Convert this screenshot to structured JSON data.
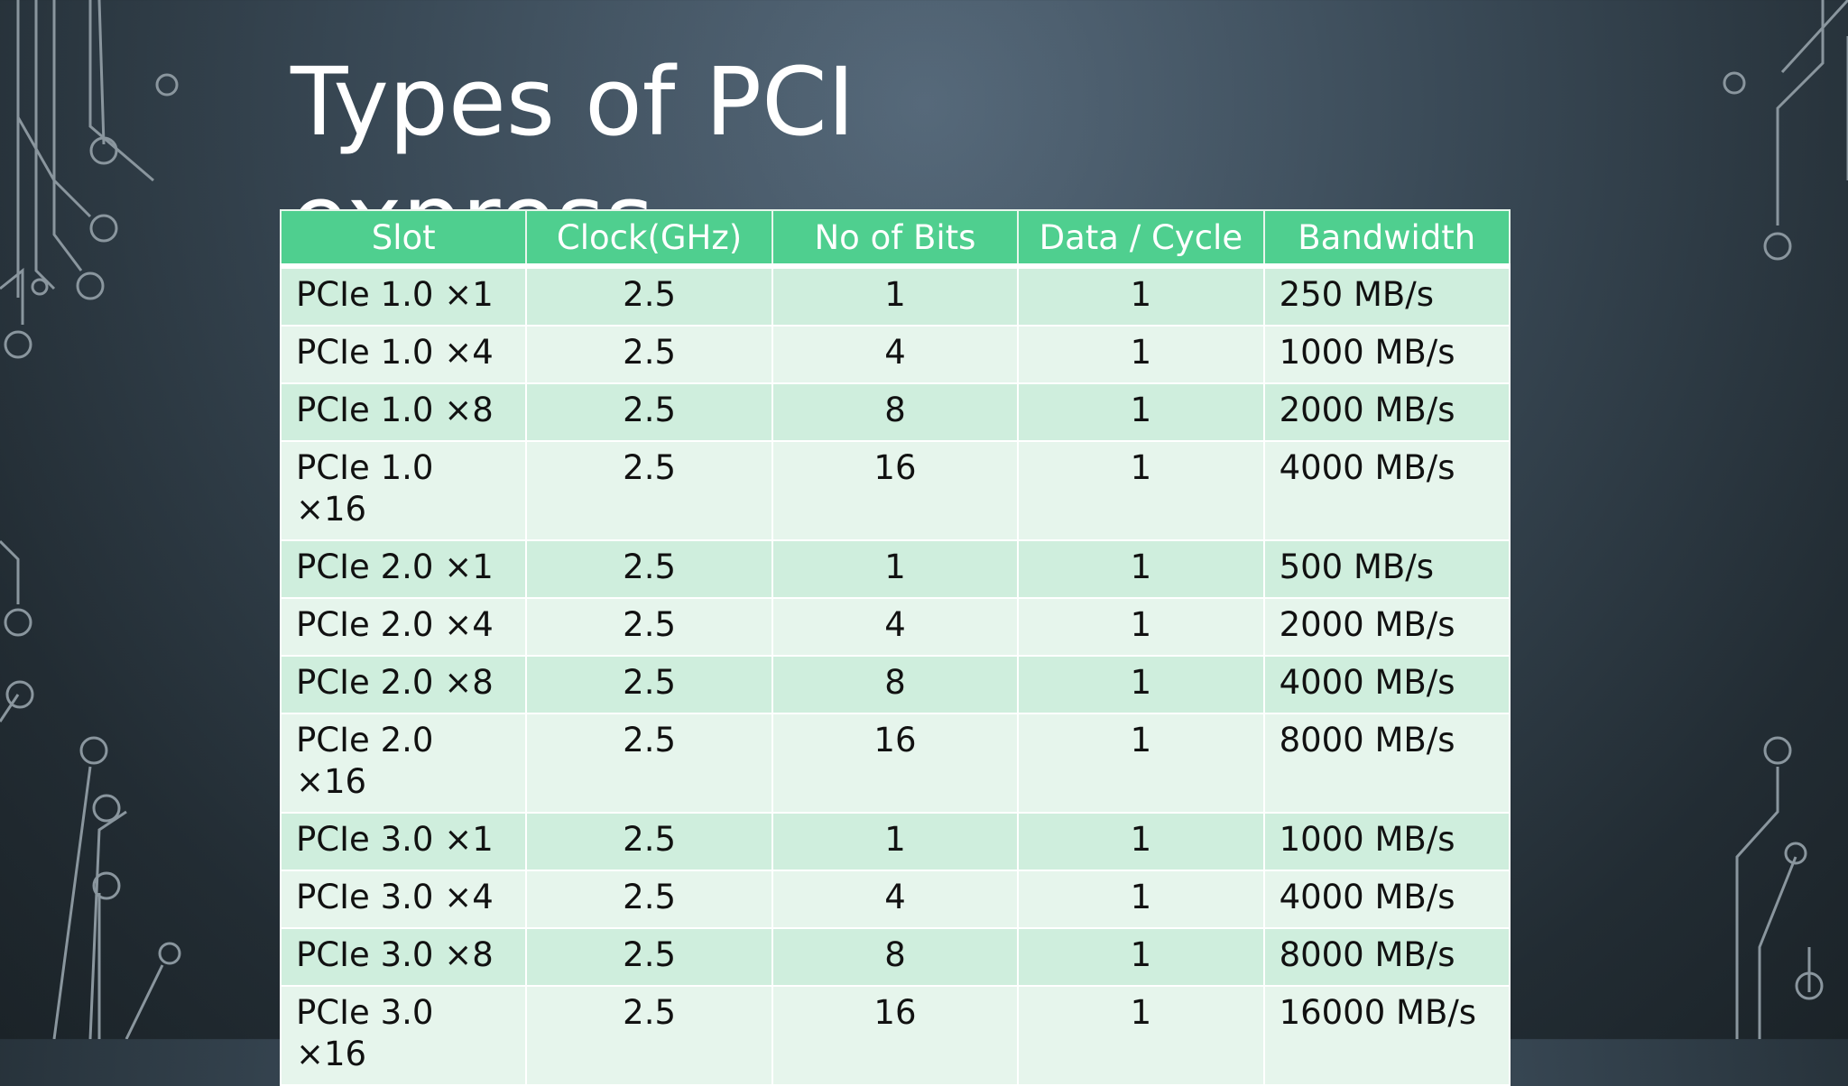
{
  "title": "Types of PCI express",
  "table": {
    "header": [
      "Slot",
      "Clock(GHz)",
      "No of Bits",
      "Data / Cycle",
      "Bandwidth"
    ],
    "rows": [
      [
        "PCIe 1.0 ×1",
        "2.5",
        "1",
        "1",
        "250 MB/s"
      ],
      [
        "PCIe 1.0 ×4",
        "2.5",
        "4",
        "1",
        "1000 MB/s"
      ],
      [
        "PCIe 1.0 ×8",
        "2.5",
        "8",
        "1",
        "2000 MB/s"
      ],
      [
        "PCIe 1.0 ×16",
        "2.5",
        "16",
        "1",
        "4000 MB/s"
      ],
      [
        "PCIe 2.0 ×1",
        "2.5",
        "1",
        "1",
        "500 MB/s"
      ],
      [
        "PCIe 2.0 ×4",
        "2.5",
        "4",
        "1",
        "2000 MB/s"
      ],
      [
        "PCIe 2.0 ×8",
        "2.5",
        "8",
        "1",
        "4000 MB/s"
      ],
      [
        "PCIe 2.0 ×16",
        "2.5",
        "16",
        "1",
        "8000 MB/s"
      ],
      [
        "PCIe 3.0 ×1",
        "2.5",
        "1",
        "1",
        "1000 MB/s"
      ],
      [
        "PCIe 3.0 ×4",
        "2.5",
        "4",
        "1",
        "4000 MB/s"
      ],
      [
        "PCIe 3.0 ×8",
        "2.5",
        "8",
        "1",
        "8000 MB/s"
      ],
      [
        "PCIe 3.0 ×16",
        "2.5",
        "16",
        "1",
        "16000 MB/s"
      ]
    ]
  }
}
